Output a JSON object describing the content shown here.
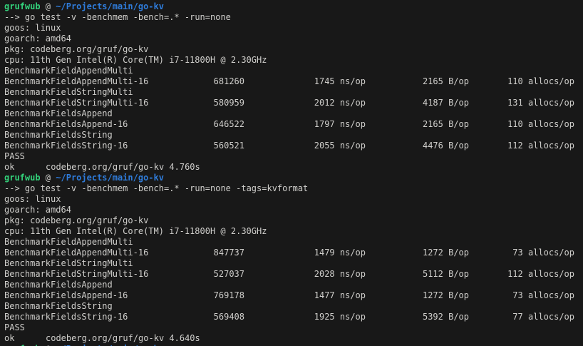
{
  "terminal": {
    "colors": {
      "background": "#181818",
      "foreground": "#d0cfcc",
      "prompt_user_green": "#33d17a",
      "prompt_path_blue": "#2f7cdb"
    },
    "prompt": {
      "user": "grufwub",
      "separator": "@",
      "path": "~/Projects/main/go-kv",
      "command_prefix": "-->"
    },
    "units": {
      "time": "ns/op",
      "memory": "B/op",
      "allocations": "allocs/op"
    },
    "session": [
      {
        "type": "prompt"
      },
      {
        "type": "cmd",
        "text": "go test -v -benchmem -bench=.* -run=none"
      },
      {
        "type": "out",
        "text": "goos: linux"
      },
      {
        "type": "out",
        "text": "goarch: amd64"
      },
      {
        "type": "out",
        "text": "pkg: codeberg.org/gruf/go-kv"
      },
      {
        "type": "out",
        "text": "cpu: 11th Gen Intel(R) Core(TM) i7-11800H @ 2.30GHz"
      },
      {
        "type": "out",
        "text": "BenchmarkFieldAppendMulti"
      },
      {
        "type": "bench",
        "name": "BenchmarkFieldAppendMulti-16",
        "iterations": 681260,
        "ns_per_op": 1745,
        "b_per_op": 2165,
        "allocs_per_op": 110
      },
      {
        "type": "out",
        "text": "BenchmarkFieldStringMulti"
      },
      {
        "type": "bench",
        "name": "BenchmarkFieldStringMulti-16",
        "iterations": 580959,
        "ns_per_op": 2012,
        "b_per_op": 4187,
        "allocs_per_op": 131
      },
      {
        "type": "out",
        "text": "BenchmarkFieldsAppend"
      },
      {
        "type": "bench",
        "name": "BenchmarkFieldsAppend-16",
        "iterations": 646522,
        "ns_per_op": 1797,
        "b_per_op": 2165,
        "allocs_per_op": 110
      },
      {
        "type": "out",
        "text": "BenchmarkFieldsString"
      },
      {
        "type": "bench",
        "name": "BenchmarkFieldsString-16",
        "iterations": 560521,
        "ns_per_op": 2055,
        "b_per_op": 4476,
        "allocs_per_op": 112
      },
      {
        "type": "out",
        "text": "PASS"
      },
      {
        "type": "ok",
        "label": "ok",
        "package": "codeberg.org/gruf/go-kv",
        "elapsed": "4.760s"
      },
      {
        "type": "prompt"
      },
      {
        "type": "cmd",
        "text": "go test -v -benchmem -bench=.* -run=none -tags=kvformat"
      },
      {
        "type": "out",
        "text": "goos: linux"
      },
      {
        "type": "out",
        "text": "goarch: amd64"
      },
      {
        "type": "out",
        "text": "pkg: codeberg.org/gruf/go-kv"
      },
      {
        "type": "out",
        "text": "cpu: 11th Gen Intel(R) Core(TM) i7-11800H @ 2.30GHz"
      },
      {
        "type": "out",
        "text": "BenchmarkFieldAppendMulti"
      },
      {
        "type": "bench",
        "name": "BenchmarkFieldAppendMulti-16",
        "iterations": 847737,
        "ns_per_op": 1479,
        "b_per_op": 1272,
        "allocs_per_op": 73
      },
      {
        "type": "out",
        "text": "BenchmarkFieldStringMulti"
      },
      {
        "type": "bench",
        "name": "BenchmarkFieldStringMulti-16",
        "iterations": 527037,
        "ns_per_op": 2028,
        "b_per_op": 5112,
        "allocs_per_op": 112
      },
      {
        "type": "out",
        "text": "BenchmarkFieldsAppend"
      },
      {
        "type": "bench",
        "name": "BenchmarkFieldsAppend-16",
        "iterations": 769178,
        "ns_per_op": 1477,
        "b_per_op": 1272,
        "allocs_per_op": 73
      },
      {
        "type": "out",
        "text": "BenchmarkFieldsString"
      },
      {
        "type": "bench",
        "name": "BenchmarkFieldsString-16",
        "iterations": 569408,
        "ns_per_op": 1925,
        "b_per_op": 5392,
        "allocs_per_op": 77
      },
      {
        "type": "out",
        "text": "PASS"
      },
      {
        "type": "ok",
        "label": "ok",
        "package": "codeberg.org/gruf/go-kv",
        "elapsed": "4.640s"
      },
      {
        "type": "prompt"
      }
    ]
  }
}
